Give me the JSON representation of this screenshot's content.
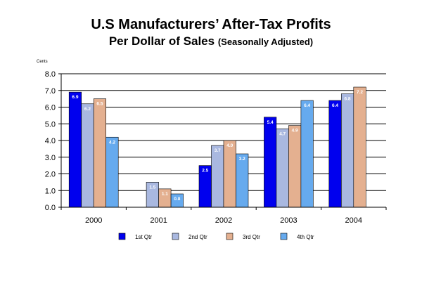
{
  "chart_data": {
    "type": "bar",
    "title": "U.S Manufacturers’ After-Tax Profits",
    "subtitle_main": "Per Dollar of Sales",
    "subtitle_note": "(Seasonally Adjusted)",
    "ylabel": "Cents",
    "xlabel": "",
    "ylim": [
      0,
      8
    ],
    "yticks": [
      "0.0",
      "1.0",
      "2.0",
      "3.0",
      "4.0",
      "5.0",
      "6.0",
      "7.0",
      "8.0"
    ],
    "categories": [
      "2000",
      "2001",
      "2002",
      "2003",
      "2004"
    ],
    "grid": true,
    "legend_position": "bottom",
    "series": [
      {
        "name": "1st Qtr",
        "color": "#0000ee",
        "values": [
          6.9,
          null,
          2.5,
          5.4,
          6.4
        ],
        "labels": [
          "6.9",
          "",
          "2.5",
          "5.4",
          "6.4"
        ]
      },
      {
        "name": "2nd Qtr",
        "color": "#a9b8e0",
        "values": [
          6.2,
          1.5,
          3.7,
          4.7,
          6.8
        ],
        "labels": [
          "6.2",
          "1.5",
          "3.7",
          "4.7",
          "6.8"
        ]
      },
      {
        "name": "3rd Qtr",
        "color": "#e4b090",
        "values": [
          6.5,
          1.1,
          4.0,
          4.9,
          7.2
        ],
        "labels": [
          "6.5",
          "1.1",
          "4.0",
          "4.9",
          "7.2"
        ]
      },
      {
        "name": "4th Qtr",
        "color": "#66aaee",
        "values": [
          4.2,
          0.8,
          3.2,
          6.4,
          null
        ],
        "labels": [
          "4.2",
          "0.8",
          "3.2",
          "6.4",
          ""
        ]
      }
    ]
  }
}
